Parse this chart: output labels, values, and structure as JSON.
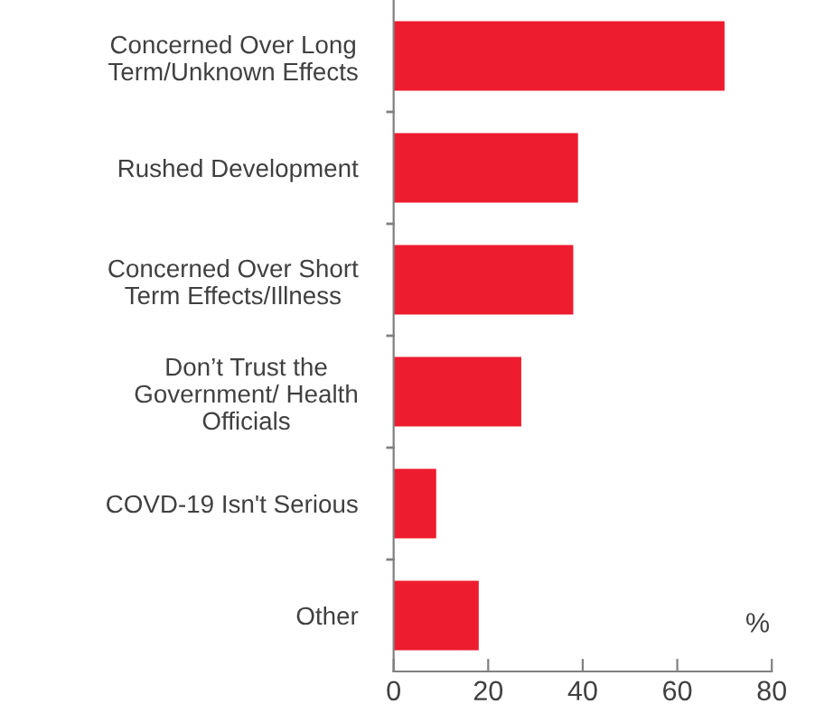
{
  "chart_data": {
    "type": "bar",
    "orientation": "horizontal",
    "categories": [
      "Concerned Over Long\nTerm/Unknown Effects",
      "Rushed Development",
      "Concerned Over Short\nTerm Effects/Illness",
      "Don’t Trust the\nGovernment/ Health\nOfficials",
      "COVD-19 Isn't Serious",
      "Other"
    ],
    "values": [
      70,
      39,
      38,
      27,
      9,
      18
    ],
    "color": "#ed1c2e",
    "xlim": [
      0,
      80
    ],
    "xticks": [
      0,
      20,
      40,
      60,
      80
    ],
    "annotations": [
      "%"
    ],
    "grid": false,
    "legend": false
  }
}
